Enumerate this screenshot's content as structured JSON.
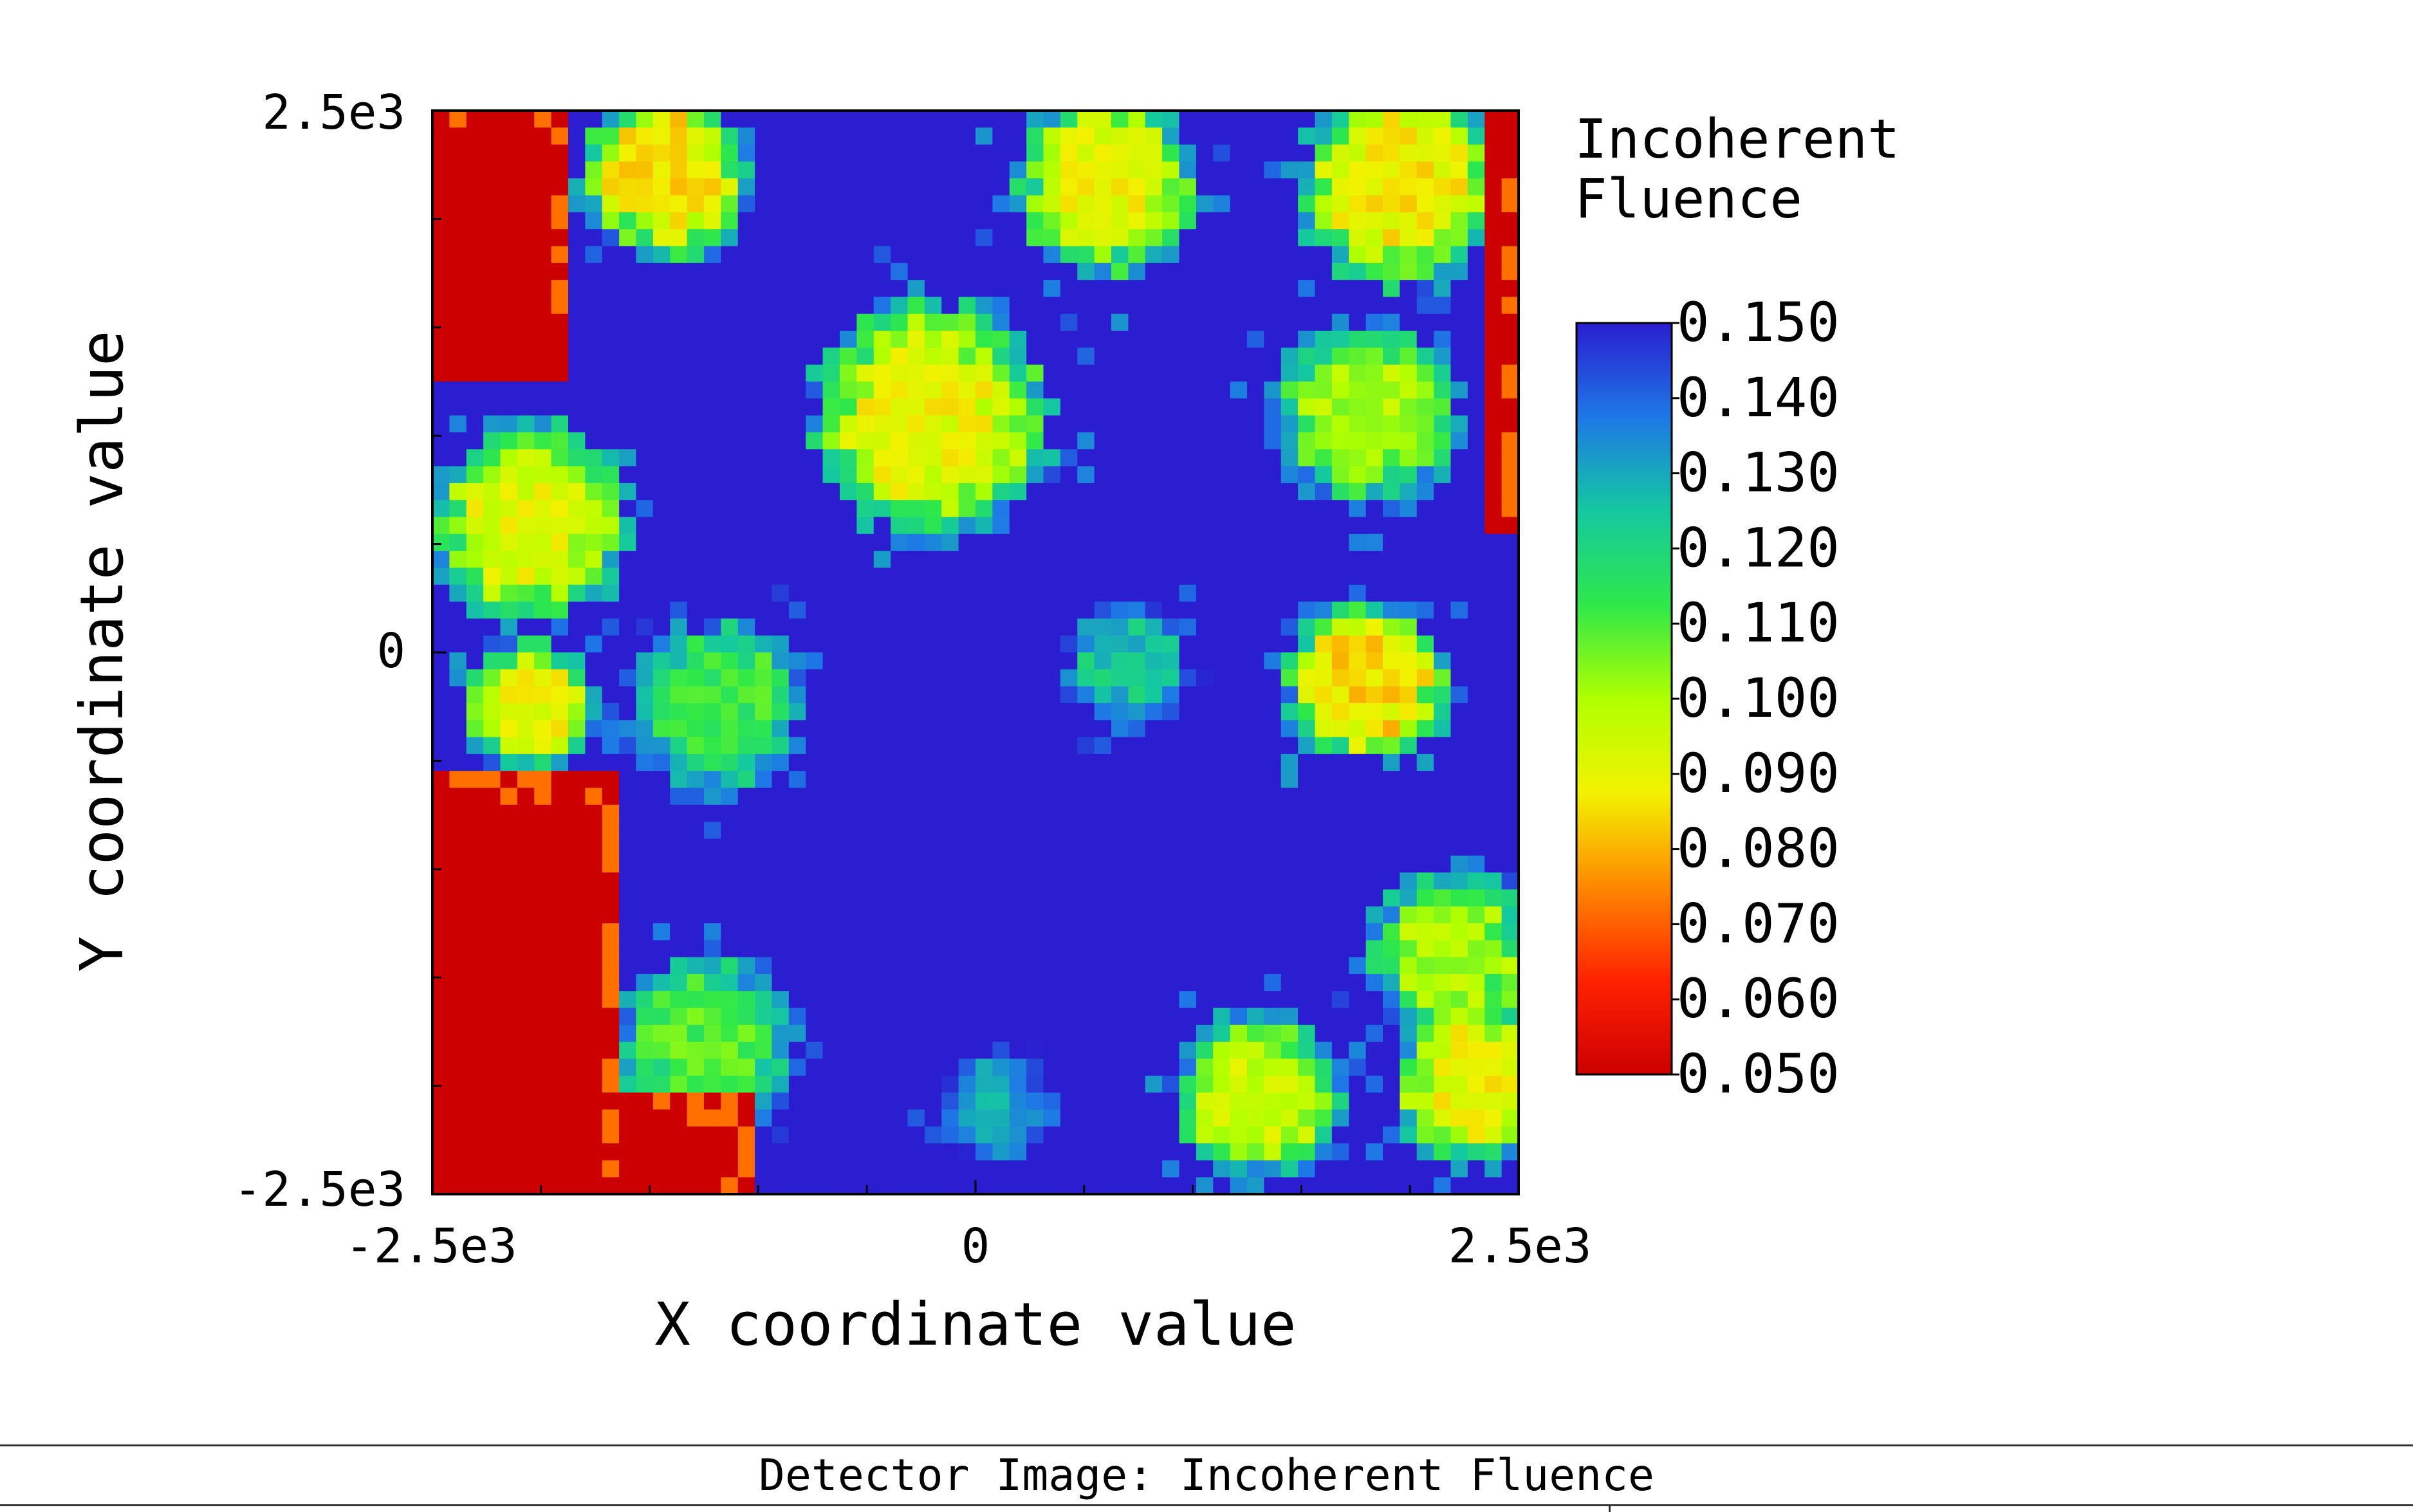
{
  "chart_data": {
    "type": "heatmap",
    "title": "",
    "xlabel": "X coordinate value",
    "ylabel": "Y coordinate value",
    "xlim": [
      -2500,
      2500
    ],
    "ylim": [
      -2500,
      2500
    ],
    "x_tick_labels": [
      "-2.5e3",
      "0",
      "2.5e3"
    ],
    "y_tick_labels": [
      "2.5e3",
      "0",
      "-2.5e3"
    ],
    "colorbar": {
      "title_lines": [
        "Incoherent",
        "Fluence"
      ],
      "min": 0.05,
      "max": 0.15,
      "tick_labels": [
        "0.150",
        "0.140",
        "0.130",
        "0.120",
        "0.110",
        "0.100",
        "0.090",
        "0.080",
        "0.070",
        "0.060",
        "0.050"
      ],
      "colormap": [
        "#cc0000",
        "#ff2200",
        "#ff8800",
        "#f2f200",
        "#b0ff00",
        "#2ee84a",
        "#14c8a0",
        "#1e78e6",
        "#2a1ed0"
      ]
    },
    "background_value": 0.15,
    "clipped_regions_value": 0.05,
    "clipped_regions": [
      {
        "x0": -2500,
        "x1": -1880,
        "y0": 1220,
        "y1": 2500
      },
      {
        "x0": -2500,
        "x1": -1650,
        "y0": -2500,
        "y1": -580
      },
      {
        "x0": -1650,
        "x1": -1050,
        "y0": -2500,
        "y1": -2060
      },
      {
        "x0": 2350,
        "x1": 2500,
        "y0": 570,
        "y1": 2500
      }
    ],
    "low_fluence_blobs": [
      {
        "x": -1430,
        "y": 2200,
        "r": 430,
        "value": 0.085
      },
      {
        "x": 600,
        "y": 2150,
        "r": 470,
        "value": 0.09
      },
      {
        "x": 1950,
        "y": 2150,
        "r": 530,
        "value": 0.088
      },
      {
        "x": -200,
        "y": 1080,
        "r": 620,
        "value": 0.09
      },
      {
        "x": 1800,
        "y": 1100,
        "r": 480,
        "value": 0.1
      },
      {
        "x": 1800,
        "y": -150,
        "r": 420,
        "value": 0.085
      },
      {
        "x": -2050,
        "y": 600,
        "r": 520,
        "value": 0.092
      },
      {
        "x": -1200,
        "y": -250,
        "r": 450,
        "value": 0.112
      },
      {
        "x": 700,
        "y": -50,
        "r": 320,
        "value": 0.125
      },
      {
        "x": -1250,
        "y": -1800,
        "r": 470,
        "value": 0.11
      },
      {
        "x": 1300,
        "y": -2050,
        "r": 430,
        "value": 0.095
      },
      {
        "x": 2200,
        "y": -1400,
        "r": 450,
        "value": 0.1
      },
      {
        "x": 2300,
        "y": -2000,
        "r": 430,
        "value": 0.09
      },
      {
        "x": 100,
        "y": -2100,
        "r": 280,
        "value": 0.13
      },
      {
        "x": -2050,
        "y": -250,
        "r": 330,
        "value": 0.09
      }
    ]
  },
  "status_bar": {
    "title": "Detector Image: Incoherent Fluence"
  }
}
